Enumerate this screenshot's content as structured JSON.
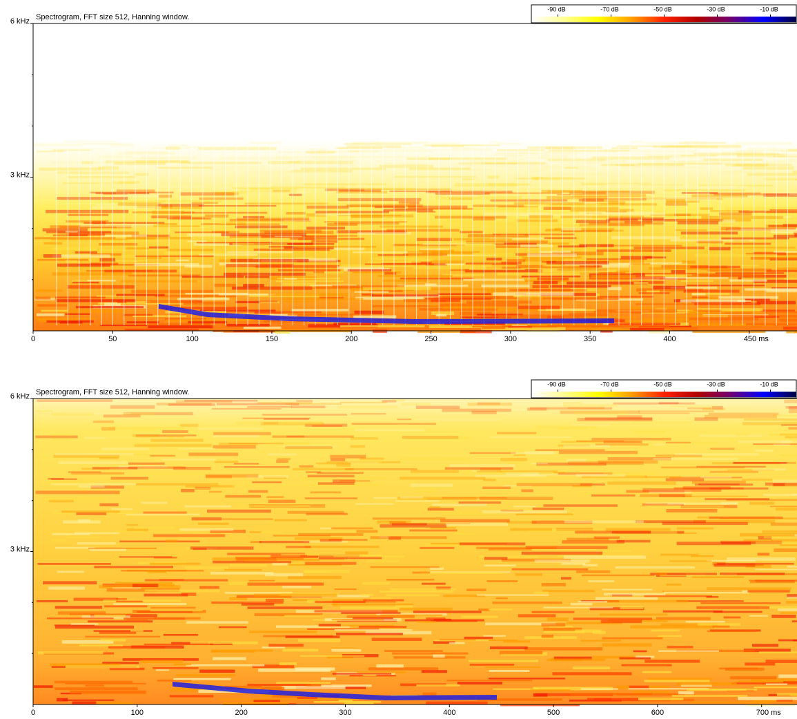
{
  "chart_data": [
    {
      "type": "spectrogram",
      "title": "Spectrogram, FFT size 512, Hanning window.",
      "xlim": [
        0,
        480
      ],
      "xticks": [
        0,
        50,
        100,
        150,
        200,
        250,
        300,
        350,
        400,
        {
          "value": 450,
          "label": "450 ms"
        }
      ],
      "ylim": [
        0,
        6
      ],
      "yticks": [
        {
          "value": 3,
          "label": "3 kHz"
        },
        {
          "value": 6,
          "label": "6 kHz"
        }
      ],
      "yminorticks": [
        1,
        2,
        4,
        5
      ],
      "colorbar": {
        "lim": [
          -100,
          0
        ],
        "ticks": [
          {
            "value": -90,
            "label": "-90 dB"
          },
          {
            "value": -70,
            "label": "-70 dB"
          },
          {
            "value": -50,
            "label": "-50 dB"
          },
          {
            "value": -30,
            "label": "-30 dB"
          },
          {
            "value": -10,
            "label": "-10 dB"
          }
        ],
        "colors": [
          "#ffffff",
          "#ffff90",
          "#ffff00",
          "#ffa000",
          "#ff2000",
          "#b00000",
          "#700070",
          "#0000ff",
          "#000040"
        ]
      }
    },
    {
      "type": "spectrogram",
      "title": "Spectrogram, FFT size 512, Hanning window.",
      "xlim": [
        0,
        734
      ],
      "xticks": [
        0,
        100,
        200,
        300,
        400,
        500,
        600,
        {
          "value": 700,
          "label": "700 ms"
        }
      ],
      "ylim": [
        0,
        6
      ],
      "yticks": [
        {
          "value": 3,
          "label": "3 kHz"
        },
        {
          "value": 6,
          "label": "6 kHz"
        }
      ],
      "yminorticks": [
        1,
        2,
        4,
        5
      ],
      "colorbar": {
        "lim": [
          -100,
          0
        ],
        "ticks": [
          {
            "value": -90,
            "label": "-90 dB"
          },
          {
            "value": -70,
            "label": "-70 dB"
          },
          {
            "value": -50,
            "label": "-50 dB"
          },
          {
            "value": -30,
            "label": "-30 dB"
          },
          {
            "value": -10,
            "label": "-10 dB"
          }
        ],
        "colors": [
          "#ffffff",
          "#ffff90",
          "#ffff00",
          "#ffa000",
          "#ff2000",
          "#b00000",
          "#700070",
          "#0000ff",
          "#000040"
        ]
      }
    }
  ]
}
